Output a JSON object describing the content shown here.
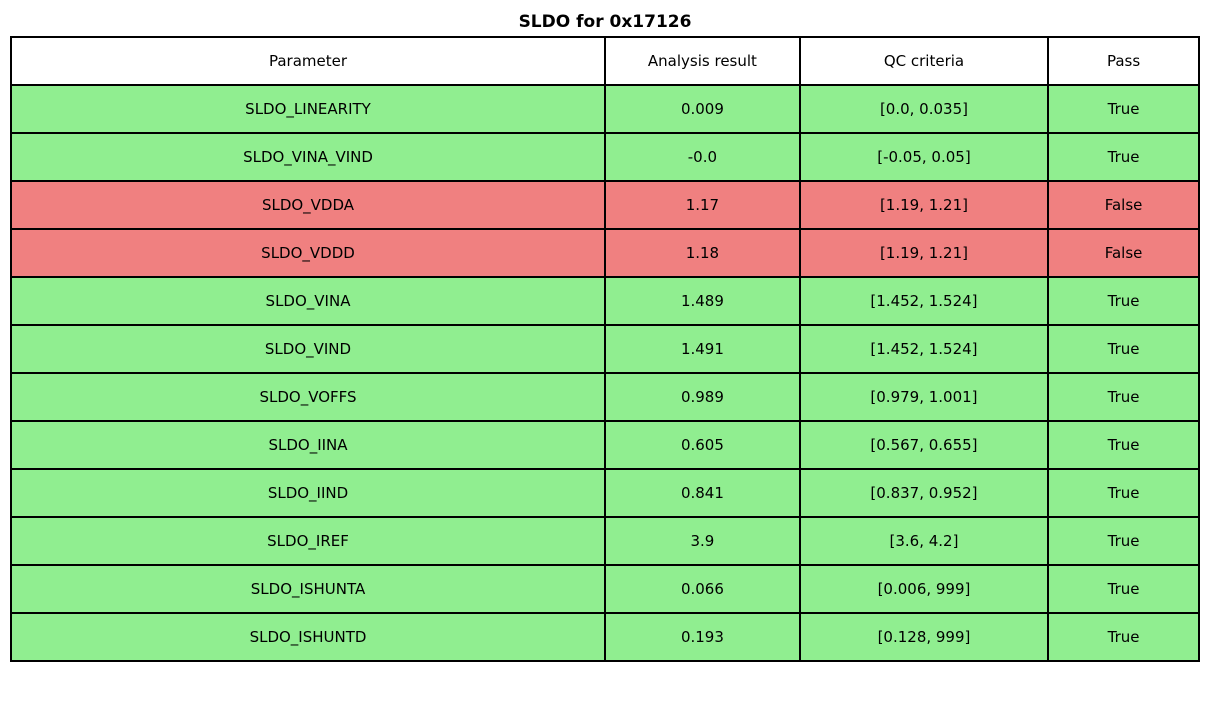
{
  "title": "SLDO for 0x17126",
  "colors": {
    "pass_row": "#90ee90",
    "fail_row": "#f08080",
    "header_bg": "#ffffff",
    "border": "#000000"
  },
  "chart_data": {
    "type": "table",
    "title": "SLDO for 0x17126",
    "columns": [
      "Parameter",
      "Analysis result",
      "QC criteria",
      "Pass"
    ],
    "rows": [
      {
        "cells": [
          "SLDO_LINEARITY",
          "0.009",
          "[0.0, 0.035]",
          "True"
        ],
        "status": "pass"
      },
      {
        "cells": [
          "SLDO_VINA_VIND",
          "-0.0",
          "[-0.05, 0.05]",
          "True"
        ],
        "status": "pass"
      },
      {
        "cells": [
          "SLDO_VDDA",
          "1.17",
          "[1.19, 1.21]",
          "False"
        ],
        "status": "fail"
      },
      {
        "cells": [
          "SLDO_VDDD",
          "1.18",
          "[1.19, 1.21]",
          "False"
        ],
        "status": "fail"
      },
      {
        "cells": [
          "SLDO_VINA",
          "1.489",
          "[1.452, 1.524]",
          "True"
        ],
        "status": "pass"
      },
      {
        "cells": [
          "SLDO_VIND",
          "1.491",
          "[1.452, 1.524]",
          "True"
        ],
        "status": "pass"
      },
      {
        "cells": [
          "SLDO_VOFFS",
          "0.989",
          "[0.979, 1.001]",
          "True"
        ],
        "status": "pass"
      },
      {
        "cells": [
          "SLDO_IINA",
          "0.605",
          "[0.567, 0.655]",
          "True"
        ],
        "status": "pass"
      },
      {
        "cells": [
          "SLDO_IIND",
          "0.841",
          "[0.837, 0.952]",
          "True"
        ],
        "status": "pass"
      },
      {
        "cells": [
          "SLDO_IREF",
          "3.9",
          "[3.6, 4.2]",
          "True"
        ],
        "status": "pass"
      },
      {
        "cells": [
          "SLDO_ISHUNTA",
          "0.066",
          "[0.006, 999]",
          "True"
        ],
        "status": "pass"
      },
      {
        "cells": [
          "SLDO_ISHUNTD",
          "0.193",
          "[0.128, 999]",
          "True"
        ],
        "status": "pass"
      }
    ]
  }
}
